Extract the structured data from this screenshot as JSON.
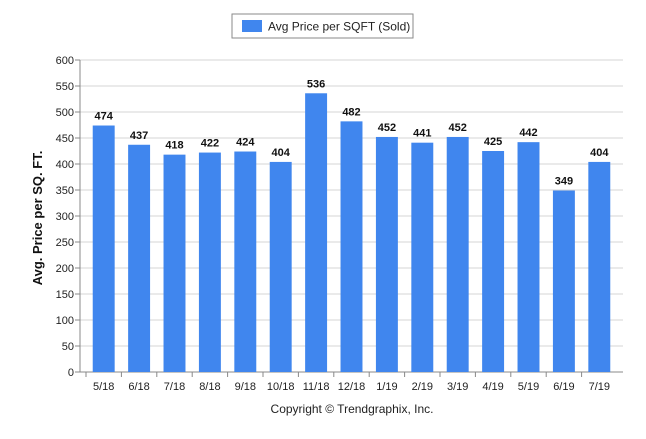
{
  "chart_data": {
    "type": "bar",
    "legend_label": "Avg Price per SQFT (Sold)",
    "legend_position": "top-center",
    "ylabel": "Avg. Price per SQ. FT.",
    "xlabel": "",
    "ylim": [
      0,
      600
    ],
    "yticks": [
      0,
      50,
      100,
      150,
      200,
      250,
      300,
      350,
      400,
      450,
      500,
      550,
      600
    ],
    "grid": true,
    "bar_color": "#4086EE",
    "categories": [
      "5/18",
      "6/18",
      "7/18",
      "8/18",
      "9/18",
      "10/18",
      "11/18",
      "12/18",
      "1/19",
      "2/19",
      "3/19",
      "4/19",
      "5/19",
      "6/19",
      "7/19"
    ],
    "values": [
      474,
      437,
      418,
      422,
      424,
      404,
      536,
      482,
      452,
      441,
      452,
      425,
      442,
      349,
      404
    ]
  },
  "footer": {
    "copyright": "Copyright © Trendgraphix, Inc."
  }
}
